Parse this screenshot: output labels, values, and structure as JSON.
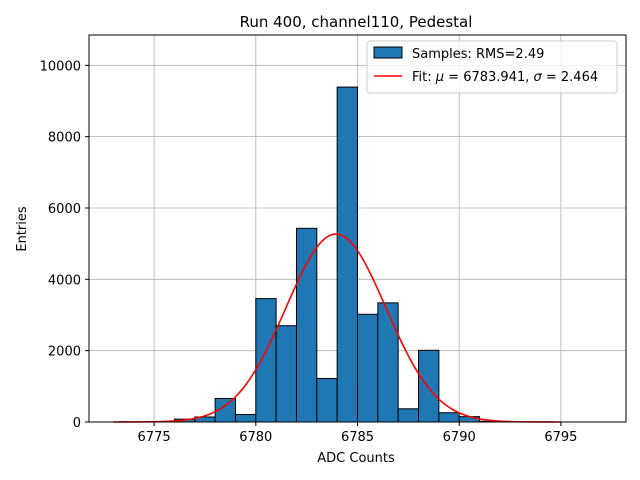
{
  "chart_data": {
    "type": "bar",
    "title": "Run 400, channel110, Pedestal",
    "xlabel": "ADC Counts",
    "ylabel": "Entries",
    "xlim": [
      6771.8,
      6798.2
    ],
    "ylim": [
      0,
      10850
    ],
    "grid": true,
    "legend_position": "top-right",
    "xticks": [
      6775,
      6780,
      6785,
      6790,
      6795
    ],
    "yticks": [
      0,
      2000,
      4000,
      6000,
      8000,
      10000
    ],
    "histogram": {
      "name": "Samples: RMS=2.49",
      "bin_width": 1,
      "bins": [
        {
          "x0": 6776,
          "value": 80
        },
        {
          "x0": 6777,
          "value": 140
        },
        {
          "x0": 6778,
          "value": 660
        },
        {
          "x0": 6779,
          "value": 210
        },
        {
          "x0": 6780,
          "value": 3460
        },
        {
          "x0": 6781,
          "value": 2700
        },
        {
          "x0": 6782,
          "value": 5430
        },
        {
          "x0": 6783,
          "value": 1220
        },
        {
          "x0": 6784,
          "value": 9390
        },
        {
          "x0": 6785,
          "value": 3020
        },
        {
          "x0": 6786,
          "value": 3340
        },
        {
          "x0": 6787,
          "value": 370
        },
        {
          "x0": 6788,
          "value": 2010
        },
        {
          "x0": 6789,
          "value": 260
        },
        {
          "x0": 6790,
          "value": 150
        },
        {
          "x0": 6791,
          "value": 20
        }
      ]
    },
    "fit": {
      "name": "Fit: μ = 6783.941, σ = 2.464",
      "legend_prefix": "Fit: ",
      "legend_mu_symbol": "μ",
      "legend_mu_text": " = 6783.941, ",
      "legend_sigma_symbol": "σ",
      "legend_sigma_text": " = 2.464",
      "mu": 6783.941,
      "sigma": 2.464,
      "amplitude": 5270,
      "x_range": [
        6773,
        6795
      ]
    },
    "colors": {
      "bar_fill": "#1f77b4",
      "bar_edge": "#000000",
      "fit_line": "#ff0000",
      "grid": "#b0b0b0"
    }
  }
}
